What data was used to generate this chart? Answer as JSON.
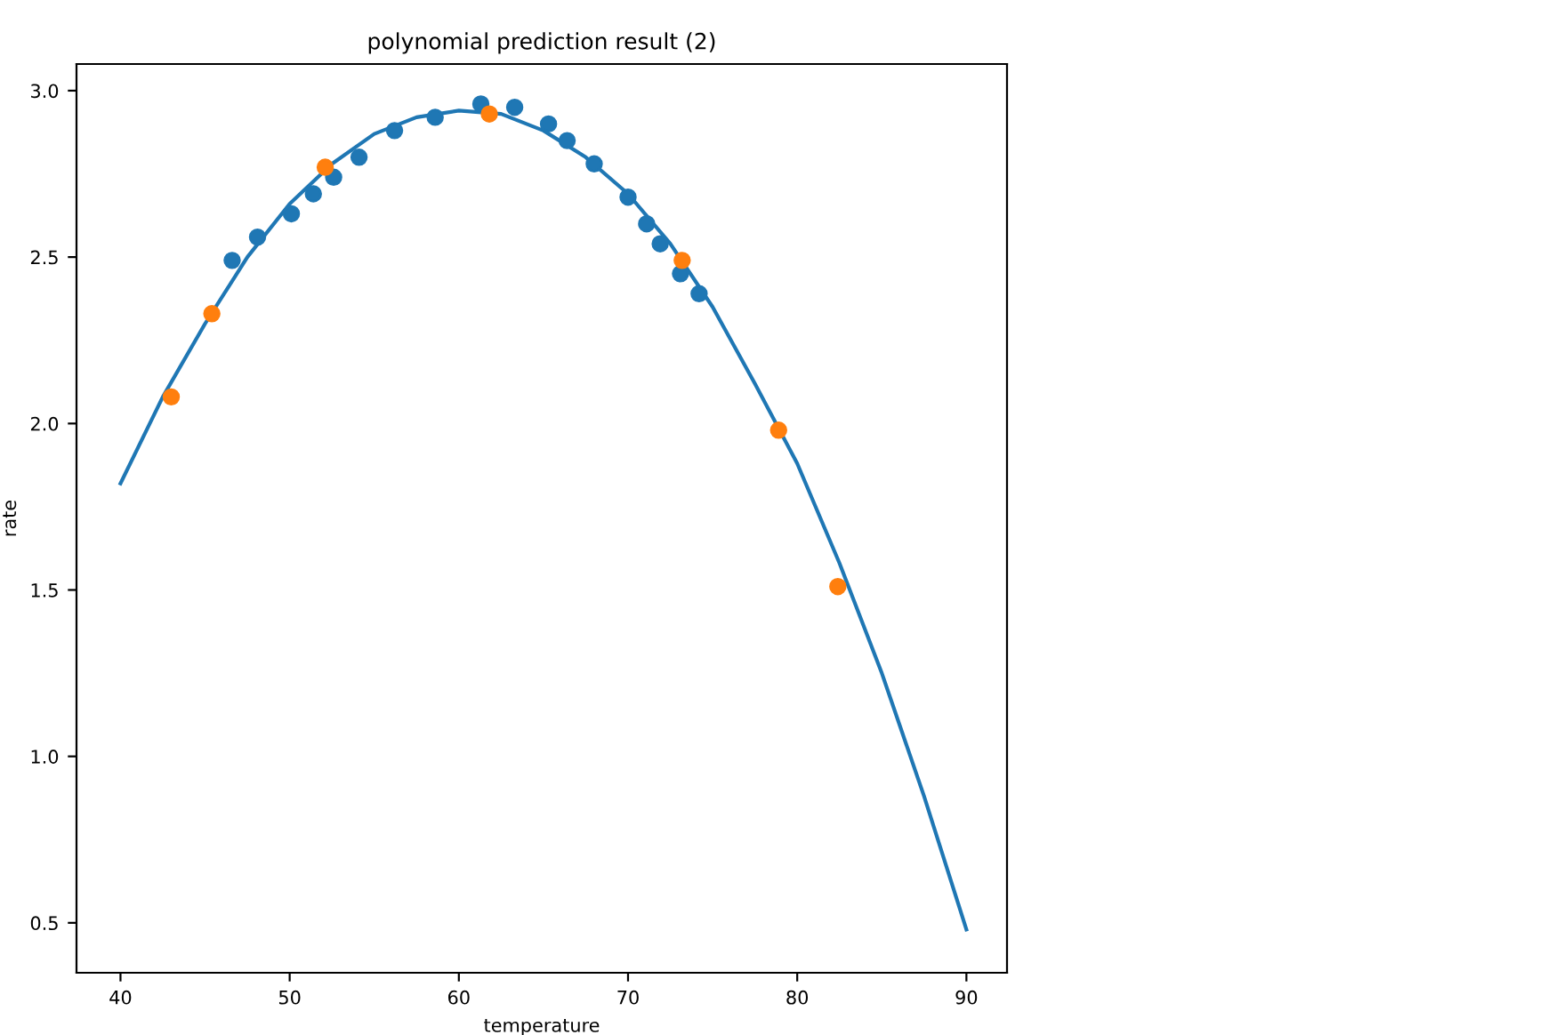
{
  "chart_data": {
    "type": "scatter",
    "title": "polynomial prediction result (2)",
    "xlabel": "temperature",
    "ylabel": "rate",
    "xlim": [
      37.4,
      92.4
    ],
    "xticks": [
      40,
      50,
      60,
      70,
      80,
      90
    ],
    "ylim": [
      0.35,
      3.08
    ],
    "yticks": [
      0.5,
      {
        "value": 1,
        "label": "1.0"
      },
      1.5,
      {
        "value": 2,
        "label": "2.0"
      },
      2.5,
      {
        "value": 3,
        "label": "3.0"
      }
    ],
    "grid": false,
    "series": [
      {
        "type": "line",
        "color": "#1f77b4",
        "x": [
          40,
          42.5,
          45,
          47.5,
          50,
          52.5,
          55,
          57.5,
          60,
          62.5,
          65,
          67.5,
          70,
          72.5,
          75,
          77.5,
          80,
          82.5,
          85,
          87.5,
          90
        ],
        "values": [
          1.82,
          2.08,
          2.3,
          2.5,
          2.66,
          2.78,
          2.87,
          2.92,
          2.94,
          2.93,
          2.88,
          2.8,
          2.69,
          2.54,
          2.35,
          2.12,
          1.88,
          1.58,
          1.25,
          0.88,
          0.48
        ]
      },
      {
        "color": "#1f77b4",
        "marker": "circle",
        "x": [
          46.6,
          48.1,
          50.1,
          51.4,
          52.6,
          54.1,
          56.2,
          58.6,
          61.3,
          63.3,
          65.3,
          66.4,
          68.0,
          70.0,
          71.1,
          71.9,
          73.1,
          74.2
        ],
        "values": [
          2.49,
          2.56,
          2.63,
          2.69,
          2.74,
          2.8,
          2.88,
          2.92,
          2.96,
          2.95,
          2.9,
          2.85,
          2.78,
          2.68,
          2.6,
          2.54,
          2.45,
          2.39
        ]
      },
      {
        "color": "#ff7f0e",
        "marker": "circle",
        "x": [
          43.0,
          45.4,
          52.1,
          61.8,
          73.2,
          78.9,
          82.4
        ],
        "values": [
          2.08,
          2.33,
          2.77,
          2.93,
          2.49,
          1.98,
          1.51
        ]
      }
    ]
  }
}
